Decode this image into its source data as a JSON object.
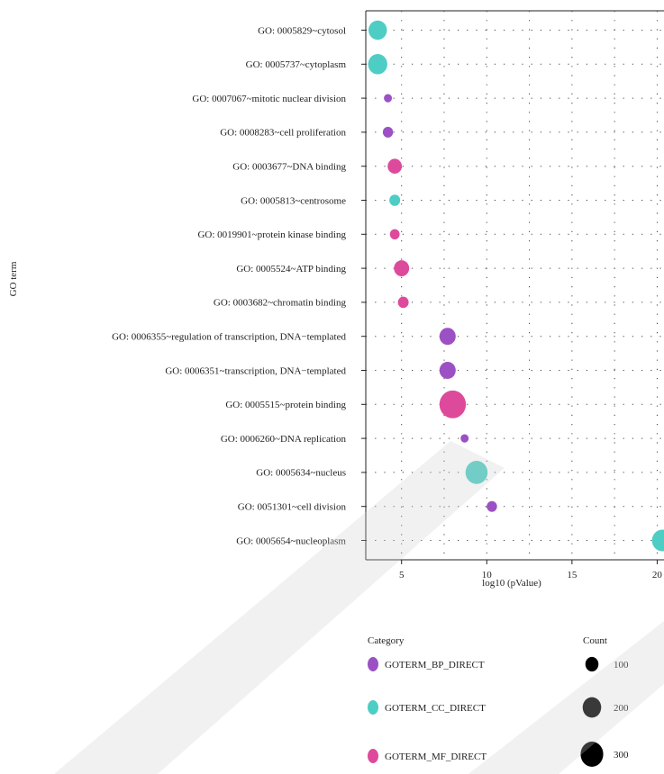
{
  "chart_data": {
    "type": "scatter",
    "xlabel": "log10 (pValue)",
    "ylabel": "GO term",
    "xlim": [
      2.9,
      20.4
    ],
    "xticks": [
      5,
      10,
      15,
      20
    ],
    "grid": true,
    "categories": [
      "GO: 0005829~cytosol",
      "GO: 0005737~cytoplasm",
      "GO: 0007067~mitotic nuclear division",
      "GO: 0008283~cell proliferation",
      "GO: 0003677~DNA binding",
      "GO: 0005813~centrosome",
      "GO: 0019901~protein kinase binding",
      "GO: 0005524~ATP binding",
      "GO: 0003682~chromatin binding",
      "GO: 0006355~regulation of transcription, DNA−templated",
      "GO: 0006351~transcription, DNA−templated",
      "GO: 0005515~protein binding",
      "GO: 0006260~DNA replication",
      "GO: 0005634~nucleus",
      "GO: 0051301~cell division",
      "GO: 0005654~nucleoplasm"
    ],
    "points": [
      {
        "term": "GO: 0005829~cytosol",
        "x": 3.6,
        "count": 160,
        "category": "GOTERM_CC_DIRECT"
      },
      {
        "term": "GO: 0005737~cytoplasm",
        "x": 3.6,
        "count": 175,
        "category": "GOTERM_CC_DIRECT"
      },
      {
        "term": "GO: 0007067~mitotic nuclear division",
        "x": 4.2,
        "count": 30,
        "category": "GOTERM_BP_DIRECT"
      },
      {
        "term": "GO: 0008283~cell proliferation",
        "x": 4.2,
        "count": 50,
        "category": "GOTERM_BP_DIRECT"
      },
      {
        "term": "GO: 0003677~DNA binding",
        "x": 4.6,
        "count": 95,
        "category": "GOTERM_MF_DIRECT"
      },
      {
        "term": "GO: 0005813~centrosome",
        "x": 4.6,
        "count": 55,
        "category": "GOTERM_CC_DIRECT"
      },
      {
        "term": "GO: 0019901~protein kinase binding",
        "x": 4.6,
        "count": 45,
        "category": "GOTERM_MF_DIRECT"
      },
      {
        "term": "GO: 0005524~ATP binding",
        "x": 5.0,
        "count": 110,
        "category": "GOTERM_MF_DIRECT"
      },
      {
        "term": "GO: 0003682~chromatin binding",
        "x": 5.1,
        "count": 55,
        "category": "GOTERM_MF_DIRECT"
      },
      {
        "term": "GO: 0006355~regulation of transcription, DNA−templated",
        "x": 7.7,
        "count": 125,
        "category": "GOTERM_BP_DIRECT"
      },
      {
        "term": "GO: 0006351~transcription, DNA−templated",
        "x": 7.7,
        "count": 125,
        "category": "GOTERM_BP_DIRECT"
      },
      {
        "term": "GO: 0005515~protein binding",
        "x": 8.0,
        "count": 330,
        "category": "GOTERM_MF_DIRECT"
      },
      {
        "term": "GO: 0006260~DNA replication",
        "x": 8.7,
        "count": 30,
        "category": "GOTERM_BP_DIRECT"
      },
      {
        "term": "GO: 0005634~nucleus",
        "x": 9.4,
        "count": 230,
        "category": "GOTERM_CC_DIRECT"
      },
      {
        "term": "GO: 0051301~cell division",
        "x": 10.3,
        "count": 50,
        "category": "GOTERM_BP_DIRECT"
      },
      {
        "term": "GO: 0005654~nucleoplasm",
        "x": 20.3,
        "count": 200,
        "category": "GOTERM_CC_DIRECT"
      }
    ],
    "legend": {
      "category_title": "Category",
      "category_entries": [
        {
          "name": "GOTERM_BP_DIRECT",
          "color": "#9b51c4"
        },
        {
          "name": "GOTERM_CC_DIRECT",
          "color": "#4ecdc4"
        },
        {
          "name": "GOTERM_MF_DIRECT",
          "color": "#de4a9b"
        }
      ],
      "count_title": "Count",
      "count_entries": [
        100,
        200,
        300
      ]
    },
    "legend_placement": "bottom"
  }
}
